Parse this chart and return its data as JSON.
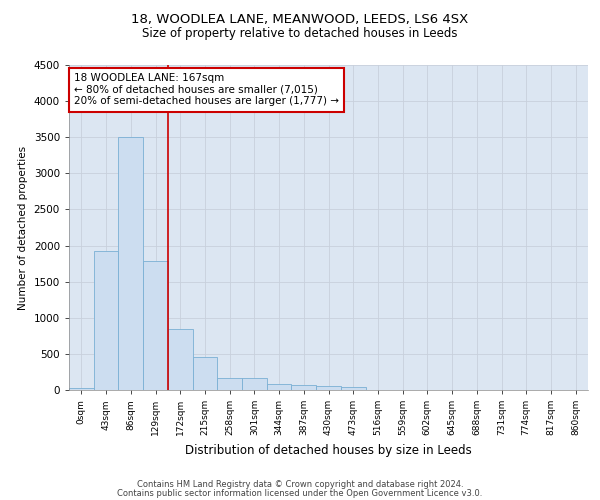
{
  "title_line1": "18, WOODLEA LANE, MEANWOOD, LEEDS, LS6 4SX",
  "title_line2": "Size of property relative to detached houses in Leeds",
  "xlabel": "Distribution of detached houses by size in Leeds",
  "ylabel": "Number of detached properties",
  "bin_labels": [
    "0sqm",
    "43sqm",
    "86sqm",
    "129sqm",
    "172sqm",
    "215sqm",
    "258sqm",
    "301sqm",
    "344sqm",
    "387sqm",
    "430sqm",
    "473sqm",
    "516sqm",
    "559sqm",
    "602sqm",
    "645sqm",
    "688sqm",
    "731sqm",
    "774sqm",
    "817sqm",
    "860sqm"
  ],
  "bar_values": [
    30,
    1920,
    3500,
    1790,
    840,
    455,
    170,
    160,
    90,
    65,
    50,
    35,
    0,
    0,
    0,
    0,
    0,
    0,
    0,
    0,
    0
  ],
  "bar_color": "#ccddf0",
  "bar_edgecolor": "#7aafd4",
  "vline_x_index": 3.5,
  "vline_color": "#cc0000",
  "annotation_text": "18 WOODLEA LANE: 167sqm\n← 80% of detached houses are smaller (7,015)\n20% of semi-detached houses are larger (1,777) →",
  "annotation_box_color": "#cc0000",
  "ylim": [
    0,
    4500
  ],
  "yticks": [
    0,
    500,
    1000,
    1500,
    2000,
    2500,
    3000,
    3500,
    4000,
    4500
  ],
  "grid_color": "#c8d0dc",
  "bg_color": "#dce6f2",
  "footer_line1": "Contains HM Land Registry data © Crown copyright and database right 2024.",
  "footer_line2": "Contains public sector information licensed under the Open Government Licence v3.0."
}
